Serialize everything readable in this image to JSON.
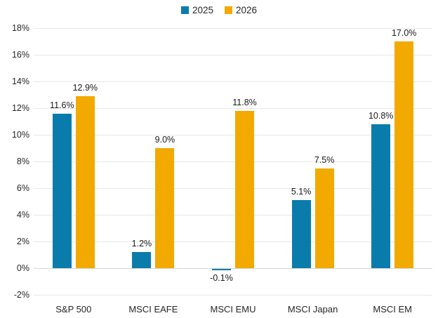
{
  "chart_data": {
    "type": "bar",
    "title": "",
    "categories": [
      "S&P 500",
      "MSCI EAFE",
      "MSCI EMU",
      "MSCI Japan",
      "MSCI EM"
    ],
    "series": [
      {
        "name": "2025",
        "color": "#0a7cac",
        "values": [
          11.6,
          1.2,
          -0.1,
          5.1,
          10.8
        ],
        "labels": [
          "11.6%",
          "1.2%",
          "-0.1%",
          "5.1%",
          "10.8%"
        ]
      },
      {
        "name": "2026",
        "color": "#f2a900",
        "values": [
          12.9,
          9.0,
          11.8,
          7.5,
          17.0
        ],
        "labels": [
          "12.9%",
          "9.0%",
          "11.8%",
          "7.5%",
          "17.0%"
        ]
      }
    ],
    "y_axis": {
      "min": -2,
      "max": 18,
      "step": 2,
      "tick_suffix": "%",
      "tick_labels": [
        "18%",
        "16%",
        "14%",
        "12%",
        "10%",
        "8%",
        "6%",
        "4%",
        "2%",
        "0%",
        "-2%"
      ]
    },
    "xlabel": "",
    "ylabel": "",
    "legend_position": "top-center",
    "grid": true,
    "value_labels_shown": true
  },
  "colors": {
    "series_2025": "#0a7cac",
    "series_2026": "#f2a900",
    "gridline": "#e8e8e8",
    "zero_line": "#d6d6d6",
    "text": "#262626",
    "background": "#ffffff"
  }
}
